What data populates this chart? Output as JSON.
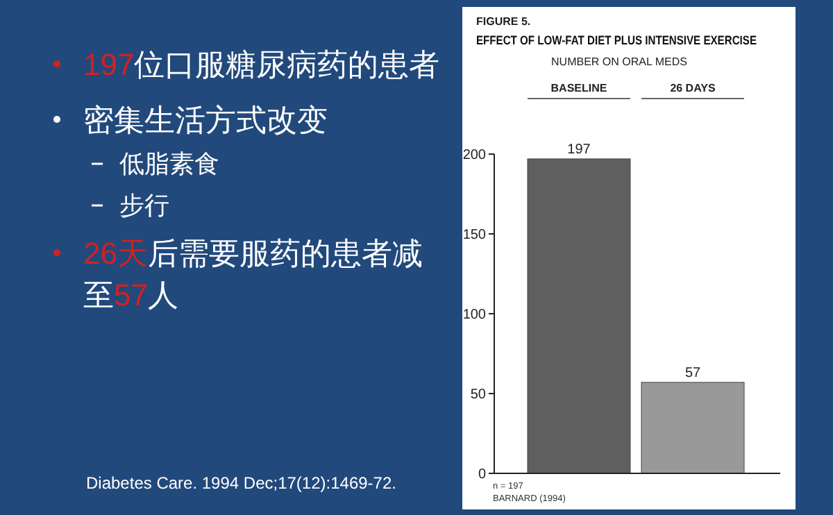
{
  "chart_data": {
    "type": "bar",
    "title": "EFFECT OF LOW-FAT DIET PLUS INTENSIVE EXERCISE",
    "subtitle": "NUMBER ON ORAL MEDS",
    "categories": [
      "BASELINE",
      "26 DAYS"
    ],
    "values": [
      197,
      57
    ],
    "colors": [
      "#5f5f5f",
      "#999999"
    ],
    "ylim": [
      0,
      200
    ],
    "yticks": [
      0,
      50,
      100,
      150,
      200
    ],
    "data_labels": true,
    "annotations": [
      "197",
      "位口服糖尿病药的患者",
      "密集生活方式改变",
      "低脂素食",
      "步行",
      "26天",
      "后需要服药的患者减",
      "至",
      "57",
      "人",
      "Diabetes Care. 1994 Dec;17(12):1469-72.",
      "FIGURE 5.",
      "n = 197",
      "BARNARD (1994)"
    ]
  }
}
